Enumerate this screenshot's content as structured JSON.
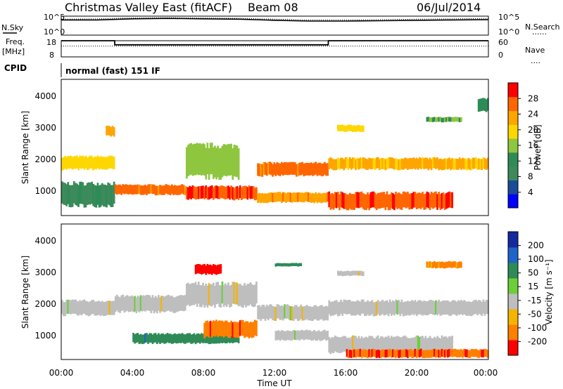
{
  "header": {
    "title": "Christmas Valley East (fitACF)",
    "beam": "Beam 08",
    "date": "06/Jul/2014"
  },
  "side_labels": {
    "nsky": "N.Sky",
    "nsearch": "N.Search",
    "freq_line1": "Freq.",
    "freq_line2": "[MHz]",
    "nave": "Nave",
    "cpid": "CPID",
    "cpid_value": "normal (fast) 151 IF",
    "noise_legend": "......",
    "nave_legend": "...."
  },
  "x_axis": {
    "label": "Time UT",
    "ticks": [
      "00:00",
      "04:00",
      "08:00",
      "12:00",
      "16:00",
      "20:00",
      "00:00"
    ]
  },
  "panels": {
    "power": {
      "ylabel": "Slant Range [km]",
      "yticks": [
        "1000",
        "2000",
        "3000",
        "4000"
      ],
      "colorbar_label": "Power [dB]",
      "colorbar_ticks": [
        "4",
        "8",
        "12",
        "16",
        "20",
        "24",
        "28"
      ]
    },
    "velocity": {
      "ylabel": "Slant Range [km]",
      "yticks": [
        "1000",
        "2000",
        "3000",
        "4000"
      ],
      "colorbar_label": "Velocity [m s⁻¹]",
      "colorbar_ticks": [
        "200",
        "100",
        "50",
        "15",
        "-15",
        "-50",
        "-100",
        "-200"
      ]
    }
  },
  "small_axes": {
    "noise_left": [
      "10^5",
      "10^0"
    ],
    "noise_right": [
      "10^5",
      "10^0"
    ],
    "freq_left": [
      "18",
      "8"
    ],
    "nave_right": [
      "60",
      "0"
    ]
  },
  "colors": {
    "power_scale": [
      "#0000ff",
      "#1a4a9a",
      "#3d8a5a",
      "#2e8b57",
      "#8ec63f",
      "#ffd700",
      "#ffa500",
      "#ff6600",
      "#ff0000"
    ],
    "velocity_scale": [
      "#1428a0",
      "#1e64c8",
      "#2e8b57",
      "#6ccf3a",
      "#bebebe",
      "#f4b400",
      "#ff7f00",
      "#ff0000"
    ]
  },
  "chart_data": [
    {
      "type": "line",
      "title": "N.Sky / N.Search",
      "x": [
        0,
        2,
        4,
        6,
        8,
        10,
        12,
        14,
        16,
        18,
        20,
        22,
        24
      ],
      "series": [
        {
          "name": "N.Sky",
          "values": [
            4.0,
            4.0,
            4.3,
            4.4,
            4.3,
            4.2,
            3.9,
            3.7,
            3.7,
            3.8,
            3.9,
            4.0,
            4.1
          ]
        },
        {
          "name": "N.Search",
          "values": [
            4.2,
            4.3,
            4.5,
            4.6,
            4.5,
            4.4,
            4.2,
            4.0,
            4.0,
            4.1,
            4.2,
            4.3,
            4.4
          ]
        }
      ],
      "ylim": [
        0,
        5
      ]
    },
    {
      "type": "line",
      "title": "Freq. / Nave",
      "x": [
        0,
        0.3,
        3.0,
        3.01,
        15.0,
        15.01,
        24
      ],
      "series": [
        {
          "name": "Freq.",
          "values": [
            18,
            18,
            18,
            15.5,
            15.5,
            18,
            18
          ]
        },
        {
          "name": "Nave",
          "values": [
            40,
            40,
            40,
            40,
            40,
            40,
            40
          ]
        }
      ],
      "ylim": [
        8,
        18
      ]
    },
    {
      "type": "heatmap",
      "ylabel": "Slant Range [km]",
      "xlabel": "Time UT",
      "xlim": [
        0,
        24
      ],
      "ylim": [
        180,
        4500
      ],
      "zlabel": "Power [dB]",
      "zlim": [
        0,
        32
      ],
      "bands": [
        {
          "t": [
            0,
            3
          ],
          "range": [
            1650,
            2050
          ],
          "value": 20
        },
        {
          "t": [
            0,
            3
          ],
          "range": [
            500,
            1200
          ],
          "value": 10
        },
        {
          "t": [
            2.5,
            3
          ],
          "range": [
            2700,
            3000
          ],
          "value": 22
        },
        {
          "t": [
            3,
            7
          ],
          "range": [
            850,
            1150
          ],
          "value": 26
        },
        {
          "t": [
            7,
            11
          ],
          "range": [
            700,
            1100
          ],
          "value": 28
        },
        {
          "t": [
            7,
            10
          ],
          "range": [
            1400,
            2400
          ],
          "value": 16
        },
        {
          "t": [
            11,
            15
          ],
          "range": [
            1450,
            1850
          ],
          "value": 26
        },
        {
          "t": [
            11,
            15
          ],
          "range": [
            600,
            900
          ],
          "value": 24
        },
        {
          "t": [
            15,
            24
          ],
          "range": [
            1650,
            2000
          ],
          "value": 22
        },
        {
          "t": [
            15,
            22
          ],
          "range": [
            400,
            900
          ],
          "value": 28
        },
        {
          "t": [
            15.5,
            17
          ],
          "range": [
            2850,
            3050
          ],
          "value": 20
        },
        {
          "t": [
            20.5,
            22.5
          ],
          "range": [
            3150,
            3300
          ],
          "value": 14
        },
        {
          "t": [
            23.4,
            24
          ],
          "range": [
            3500,
            3900
          ],
          "value": 12
        }
      ]
    },
    {
      "type": "heatmap",
      "ylabel": "Slant Range [km]",
      "xlabel": "Time UT",
      "xlim": [
        0,
        24
      ],
      "ylim": [
        180,
        4500
      ],
      "zlabel": "Velocity [m s⁻¹]",
      "zlim": [
        -200,
        200
      ],
      "bands": [
        {
          "t": [
            0,
            3
          ],
          "range": [
            1600,
            2050
          ],
          "value": 0
        },
        {
          "t": [
            3,
            7
          ],
          "range": [
            1700,
            2200
          ],
          "value": 0
        },
        {
          "t": [
            7,
            11
          ],
          "range": [
            1900,
            2600
          ],
          "value": 0
        },
        {
          "t": [
            11,
            15
          ],
          "range": [
            1450,
            1900
          ],
          "value": 0
        },
        {
          "t": [
            15,
            24
          ],
          "range": [
            1600,
            2050
          ],
          "value": 0
        },
        {
          "t": [
            7.5,
            9
          ],
          "range": [
            2900,
            3200
          ],
          "value": -120
        },
        {
          "t": [
            4,
            7
          ],
          "range": [
            700,
            1000
          ],
          "value": 60
        },
        {
          "t": [
            7,
            10
          ],
          "range": [
            700,
            1000
          ],
          "value": 55
        },
        {
          "t": [
            8,
            11
          ],
          "range": [
            900,
            1400
          ],
          "value": -60
        },
        {
          "t": [
            12,
            15
          ],
          "range": [
            800,
            1100
          ],
          "value": 0
        },
        {
          "t": [
            15,
            22
          ],
          "range": [
            400,
            900
          ],
          "value": 0
        },
        {
          "t": [
            16,
            24
          ],
          "range": [
            250,
            500
          ],
          "value": -70
        },
        {
          "t": [
            12,
            13.5
          ],
          "range": [
            3150,
            3250
          ],
          "value": 50
        },
        {
          "t": [
            15.5,
            17
          ],
          "range": [
            2850,
            3000
          ],
          "value": 0
        },
        {
          "t": [
            20.5,
            22.5
          ],
          "range": [
            3100,
            3300
          ],
          "value": -40
        }
      ]
    }
  ]
}
